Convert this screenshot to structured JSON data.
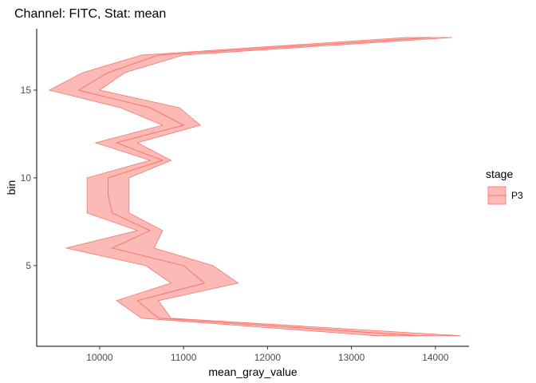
{
  "chart_data": {
    "type": "area",
    "title": "Channel: FITC, Stat: mean",
    "xlabel": "mean_gray_value",
    "ylabel": "bin",
    "xlim": [
      9250,
      14400
    ],
    "ylim": [
      0.4,
      18.5
    ],
    "xticks": [
      10000,
      11000,
      12000,
      13000,
      14000
    ],
    "yticks": [
      5,
      10,
      15
    ],
    "grid": false,
    "legend": {
      "title": "stage",
      "position": "right",
      "entries": [
        "P3"
      ]
    },
    "colors": {
      "fill": "#F8766D",
      "fill_opacity": 0.5,
      "line": "#F8766D"
    },
    "series": [
      {
        "name": "P3",
        "bin": [
          1,
          2,
          3,
          4,
          5,
          6,
          7,
          8,
          9,
          10,
          11,
          12,
          13,
          14,
          15,
          16,
          17,
          18
        ],
        "mean": [
          13800,
          10700,
          10450,
          11250,
          11000,
          10150,
          10600,
          10150,
          10100,
          10100,
          10750,
          10200,
          11000,
          10600,
          9750,
          10100,
          10700,
          13950
        ],
        "lower": [
          13300,
          10500,
          10200,
          10850,
          10550,
          9600,
          10450,
          9850,
          9850,
          9850,
          10600,
          9950,
          10750,
          10250,
          9400,
          9800,
          10500,
          13650
        ],
        "upper": [
          14300,
          10850,
          10700,
          11650,
          11350,
          10650,
          10750,
          10350,
          10350,
          10350,
          10850,
          10450,
          11200,
          10950,
          10000,
          10300,
          11000,
          14200
        ]
      }
    ]
  }
}
